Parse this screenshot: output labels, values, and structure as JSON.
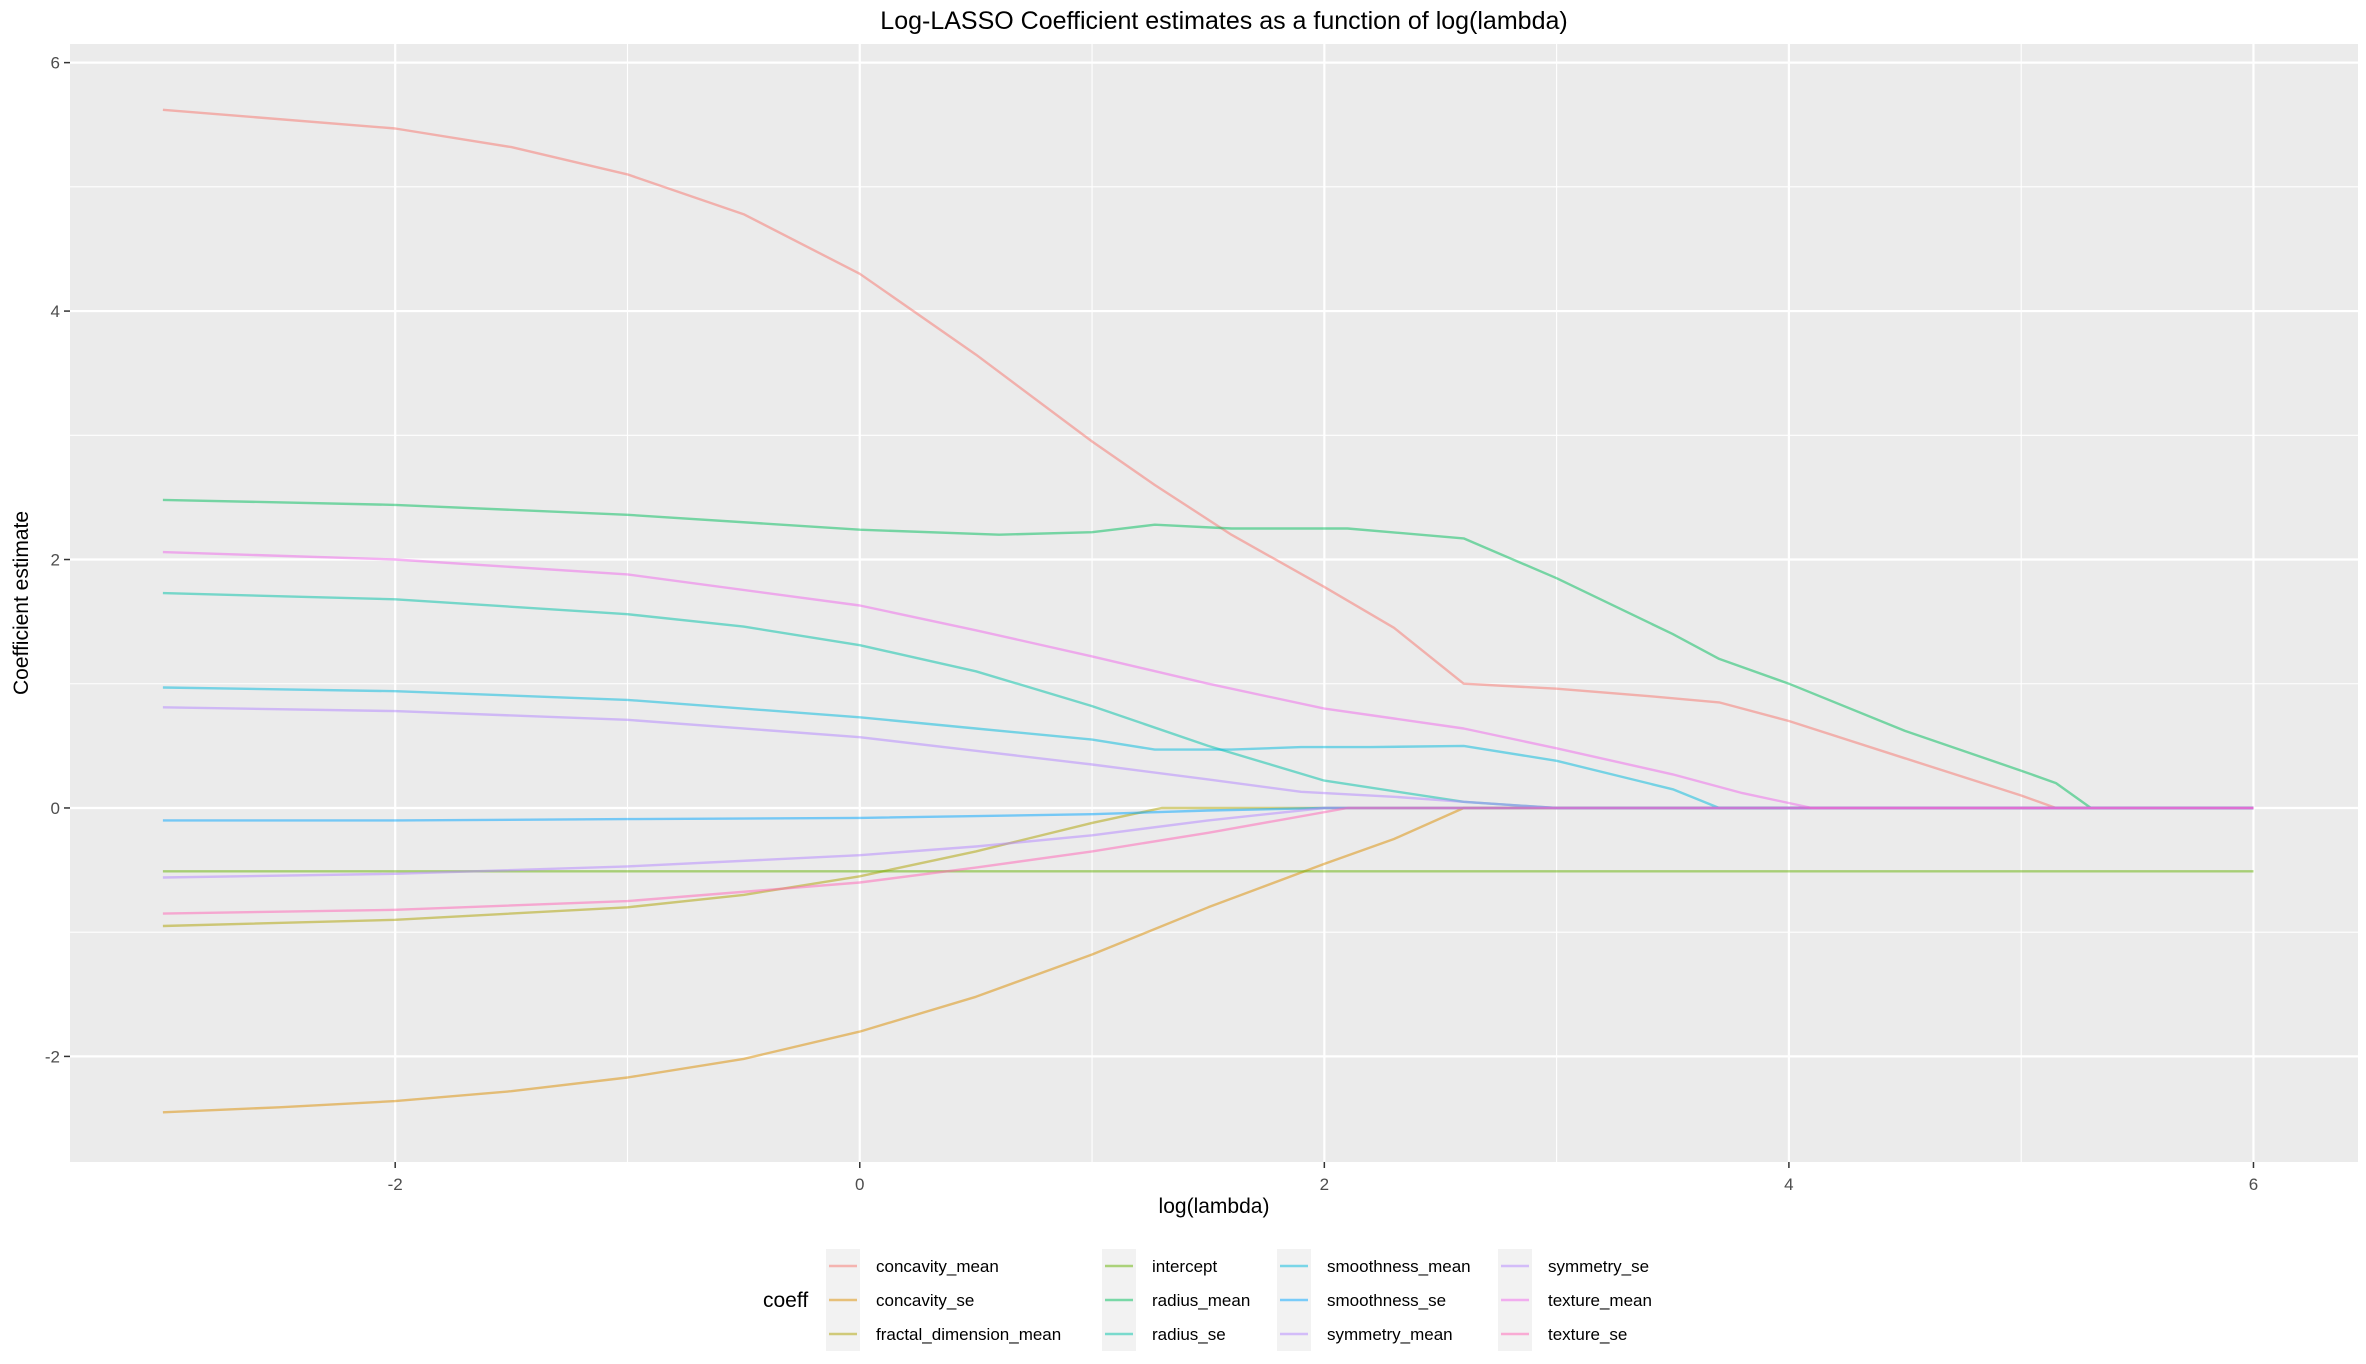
{
  "chart_data": {
    "type": "line",
    "title": "Log-LASSO Coefficient estimates as a function of log(lambda)",
    "xlabel": "log(lambda)",
    "ylabel": "Coefficient estimate",
    "xlim": [
      -3.4,
      6.45
    ],
    "ylim": [
      -2.85,
      6.15
    ],
    "x_ticks": [
      -2,
      0,
      2,
      4,
      6
    ],
    "y_ticks": [
      -2,
      0,
      2,
      4,
      6
    ],
    "grid": true,
    "legend": {
      "title": "coeff",
      "position": "bottom",
      "columns": [
        [
          "concavity_mean",
          "concavity_se",
          "fractal_dimension_mean"
        ],
        [
          "intercept",
          "radius_mean",
          "radius_se"
        ],
        [
          "smoothness_mean",
          "smoothness_se",
          "symmetry_mean"
        ],
        [
          "symmetry_se",
          "texture_mean",
          "texture_se"
        ]
      ]
    },
    "series": [
      {
        "name": "concavity_mean",
        "color": "#F8766D",
        "points": [
          [
            -3,
            5.62
          ],
          [
            -2,
            5.47
          ],
          [
            -1.5,
            5.32
          ],
          [
            -1,
            5.1
          ],
          [
            -0.5,
            4.78
          ],
          [
            0,
            4.3
          ],
          [
            0.5,
            3.65
          ],
          [
            1.0,
            2.95
          ],
          [
            1.27,
            2.6
          ],
          [
            1.6,
            2.2
          ],
          [
            2.0,
            1.78
          ],
          [
            2.3,
            1.45
          ],
          [
            2.6,
            1.0
          ],
          [
            3.0,
            0.96
          ],
          [
            3.4,
            0.9
          ],
          [
            3.7,
            0.85
          ],
          [
            4.0,
            0.7
          ],
          [
            4.5,
            0.4
          ],
          [
            5.0,
            0.1
          ],
          [
            5.15,
            0.0
          ],
          [
            6,
            0.0
          ]
        ]
      },
      {
        "name": "concavity_se",
        "color": "#DB8E00",
        "points": [
          [
            -3,
            -2.45
          ],
          [
            -2.5,
            -2.41
          ],
          [
            -2,
            -2.36
          ],
          [
            -1.5,
            -2.28
          ],
          [
            -1,
            -2.17
          ],
          [
            -0.5,
            -2.02
          ],
          [
            0,
            -1.8
          ],
          [
            0.5,
            -1.52
          ],
          [
            1.0,
            -1.18
          ],
          [
            1.5,
            -0.8
          ],
          [
            2.0,
            -0.45
          ],
          [
            2.3,
            -0.25
          ],
          [
            2.6,
            0.0
          ],
          [
            6,
            0.0
          ]
        ]
      },
      {
        "name": "fractal_dimension_mean",
        "color": "#AEA200",
        "points": [
          [
            -3,
            -0.95
          ],
          [
            -2,
            -0.9
          ],
          [
            -1,
            -0.8
          ],
          [
            -0.5,
            -0.7
          ],
          [
            0,
            -0.55
          ],
          [
            0.5,
            -0.35
          ],
          [
            1.0,
            -0.12
          ],
          [
            1.3,
            0.0
          ],
          [
            6,
            0.0
          ]
        ]
      },
      {
        "name": "intercept",
        "color": "#64B200",
        "points": [
          [
            -3,
            -0.51
          ],
          [
            6,
            -0.51
          ]
        ]
      },
      {
        "name": "radius_mean",
        "color": "#00BD5C",
        "points": [
          [
            -3,
            2.48
          ],
          [
            -2,
            2.44
          ],
          [
            -1,
            2.36
          ],
          [
            0,
            2.24
          ],
          [
            0.6,
            2.2
          ],
          [
            1.0,
            2.22
          ],
          [
            1.27,
            2.28
          ],
          [
            1.6,
            2.25
          ],
          [
            2.1,
            2.25
          ],
          [
            2.6,
            2.17
          ],
          [
            3.0,
            1.85
          ],
          [
            3.5,
            1.4
          ],
          [
            3.7,
            1.2
          ],
          [
            4.0,
            1.0
          ],
          [
            4.5,
            0.62
          ],
          [
            5.0,
            0.3
          ],
          [
            5.15,
            0.2
          ],
          [
            5.3,
            0.0
          ],
          [
            6,
            0.0
          ]
        ]
      },
      {
        "name": "radius_se",
        "color": "#00C1A7",
        "points": [
          [
            -3,
            1.73
          ],
          [
            -2,
            1.68
          ],
          [
            -1,
            1.56
          ],
          [
            -0.5,
            1.46
          ],
          [
            0,
            1.31
          ],
          [
            0.5,
            1.1
          ],
          [
            1.0,
            0.82
          ],
          [
            1.5,
            0.5
          ],
          [
            2.0,
            0.22
          ],
          [
            2.6,
            0.05
          ],
          [
            3.0,
            0.0
          ],
          [
            6,
            0.0
          ]
        ]
      },
      {
        "name": "smoothness_mean",
        "color": "#00BADE",
        "points": [
          [
            -3,
            0.97
          ],
          [
            -2,
            0.94
          ],
          [
            -1,
            0.87
          ],
          [
            0,
            0.73
          ],
          [
            0.5,
            0.64
          ],
          [
            1.0,
            0.55
          ],
          [
            1.27,
            0.47
          ],
          [
            1.6,
            0.47
          ],
          [
            1.9,
            0.49
          ],
          [
            2.2,
            0.49
          ],
          [
            2.6,
            0.5
          ],
          [
            3.0,
            0.38
          ],
          [
            3.5,
            0.15
          ],
          [
            3.7,
            0.0
          ],
          [
            6,
            0.0
          ]
        ]
      },
      {
        "name": "smoothness_se",
        "color": "#00A6FF",
        "points": [
          [
            -3,
            -0.1
          ],
          [
            -2,
            -0.1
          ],
          [
            -1,
            -0.09
          ],
          [
            0,
            -0.08
          ],
          [
            1.0,
            -0.05
          ],
          [
            1.5,
            -0.02
          ],
          [
            2.0,
            0.0
          ],
          [
            6,
            0.0
          ]
        ]
      },
      {
        "name": "symmetry_mean",
        "color": "#B385FF",
        "points": [
          [
            -3,
            0.81
          ],
          [
            -2,
            0.78
          ],
          [
            -1,
            0.71
          ],
          [
            0,
            0.57
          ],
          [
            0.5,
            0.46
          ],
          [
            1.0,
            0.35
          ],
          [
            1.5,
            0.23
          ],
          [
            1.9,
            0.13
          ],
          [
            2.3,
            0.09
          ],
          [
            2.6,
            0.05
          ],
          [
            3.0,
            0.0
          ],
          [
            6,
            0.0
          ]
        ]
      },
      {
        "name": "symmetry_se",
        "color": "#B385FF",
        "points": [
          [
            -3,
            -0.56
          ],
          [
            -2,
            -0.53
          ],
          [
            -1,
            -0.47
          ],
          [
            0,
            -0.38
          ],
          [
            0.5,
            -0.31
          ],
          [
            1.0,
            -0.22
          ],
          [
            1.5,
            -0.1
          ],
          [
            2.0,
            0.0
          ],
          [
            6,
            0.0
          ]
        ]
      },
      {
        "name": "texture_mean",
        "color": "#EF67EB",
        "points": [
          [
            -3,
            2.06
          ],
          [
            -2,
            2.0
          ],
          [
            -1,
            1.88
          ],
          [
            0,
            1.63
          ],
          [
            0.5,
            1.43
          ],
          [
            1.0,
            1.22
          ],
          [
            1.5,
            1.0
          ],
          [
            2.0,
            0.8
          ],
          [
            2.3,
            0.72
          ],
          [
            2.6,
            0.64
          ],
          [
            3.0,
            0.48
          ],
          [
            3.5,
            0.27
          ],
          [
            3.8,
            0.12
          ],
          [
            4.1,
            0.0
          ],
          [
            6,
            0.0
          ]
        ]
      },
      {
        "name": "texture_se",
        "color": "#FF63B6",
        "points": [
          [
            -3,
            -0.85
          ],
          [
            -2,
            -0.82
          ],
          [
            -1,
            -0.75
          ],
          [
            0,
            -0.6
          ],
          [
            0.5,
            -0.48
          ],
          [
            1.0,
            -0.35
          ],
          [
            1.5,
            -0.2
          ],
          [
            1.8,
            -0.1
          ],
          [
            2.1,
            0.0
          ],
          [
            6,
            0.0
          ]
        ]
      }
    ]
  }
}
